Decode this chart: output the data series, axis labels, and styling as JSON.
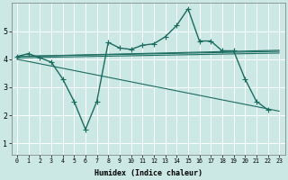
{
  "xlabel": "Humidex (Indice chaleur)",
  "bg_color": "#cce8e4",
  "grid_color": "#ffffff",
  "line_color": "#1a6b60",
  "xlim": [
    -0.5,
    23.5
  ],
  "ylim": [
    0.6,
    6.0
  ],
  "xticks": [
    0,
    1,
    2,
    3,
    4,
    5,
    6,
    7,
    8,
    9,
    10,
    11,
    12,
    13,
    14,
    15,
    16,
    17,
    18,
    19,
    20,
    21,
    22,
    23
  ],
  "yticks": [
    1,
    2,
    3,
    4,
    5
  ],
  "series_marked": [
    {
      "x": [
        0,
        1,
        2,
        3,
        4,
        5,
        6,
        7,
        8,
        9,
        10,
        11,
        12,
        13,
        14,
        15,
        16,
        17,
        18,
        19,
        20,
        21,
        22,
        23
      ],
      "y": [
        4.1,
        4.2,
        4.05,
        3.9,
        3.3,
        2.5,
        1.5,
        2.5,
        4.6,
        4.4,
        4.35,
        4.5,
        4.55,
        4.8,
        5.2,
        5.8,
        4.65,
        4.65,
        4.3,
        4.3,
        3.3,
        2.5,
        2.2,
        null
      ]
    }
  ],
  "series_flat": [
    {
      "x": [
        0,
        23
      ],
      "y": [
        4.1,
        4.32
      ]
    },
    {
      "x": [
        0,
        23
      ],
      "y": [
        4.1,
        4.28
      ]
    },
    {
      "x": [
        0,
        23
      ],
      "y": [
        4.05,
        4.22
      ]
    },
    {
      "x": [
        0,
        23
      ],
      "y": [
        4.0,
        2.15
      ]
    }
  ]
}
